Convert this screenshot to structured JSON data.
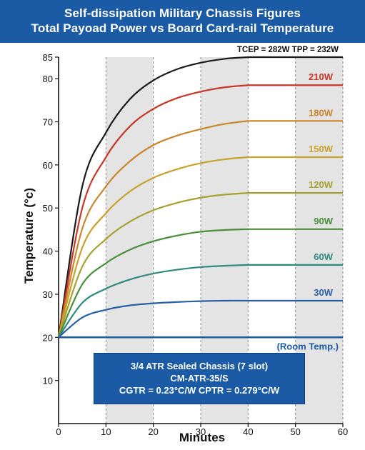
{
  "title_lines": [
    "Self-dissipation Military Chassis Figures",
    "Total Payoad Power vs Board Card-rail Temperature"
  ],
  "info_box": [
    "3/4 ATR Sealed Chassis (7 slot)",
    "CM-ATR-35/S",
    "CGTR = 0.23°C/W   CPTR = 0.279°C/W"
  ],
  "colors": {
    "title_band": "#1b5aa5",
    "room_line": "#1b5aa5",
    "shade": "#e4e4e4"
  },
  "chart_data": {
    "type": "line",
    "xlabel": "Minutes",
    "ylabel": "Temperature (°c)",
    "xlim": [
      0,
      60
    ],
    "ylim": [
      0,
      85
    ],
    "xticks": [
      0,
      10,
      20,
      30,
      40,
      50,
      60
    ],
    "yticks": [
      10,
      20,
      30,
      40,
      50,
      60,
      70,
      80,
      85
    ],
    "shaded_bands": [
      [
        10,
        20
      ],
      [
        30,
        40
      ],
      [
        50,
        60
      ]
    ],
    "gridlines": "dashed vertical at every 10 minutes",
    "room_line": {
      "label": "(Room Temp.)",
      "value": 20
    },
    "series": [
      {
        "name": "TCEP = 282W  TPP = 232W",
        "final": 85,
        "color": "#1a1a1a",
        "x": [
          0,
          5,
          10,
          15,
          20,
          25,
          30,
          35,
          40,
          50,
          60
        ],
        "y": [
          20,
          55.0,
          67.5,
          75.2,
          79.6,
          82.2,
          83.7,
          84.6,
          85,
          85,
          85
        ]
      },
      {
        "name": "210W",
        "final": 78.5,
        "color": "#c8362a",
        "x": [
          0,
          5,
          10,
          15,
          20,
          25,
          30,
          35,
          40,
          50,
          60
        ],
        "y": [
          20,
          50.0,
          61.8,
          68.9,
          73.0,
          75.5,
          77.0,
          78.0,
          78.5,
          78.5,
          78.5
        ]
      },
      {
        "name": "180W",
        "final": 70.2,
        "color": "#c9862d",
        "x": [
          0,
          5,
          10,
          15,
          20,
          25,
          30,
          35,
          40,
          50,
          60
        ],
        "y": [
          20,
          45.2,
          55.0,
          60.8,
          64.6,
          66.8,
          68.3,
          69.5,
          70.2,
          70.2,
          70.2
        ]
      },
      {
        "name": "150W",
        "final": 61.8,
        "color": "#c9a12d",
        "x": [
          0,
          5,
          10,
          15,
          20,
          25,
          30,
          35,
          40,
          50,
          60
        ],
        "y": [
          20,
          40.8,
          48.8,
          53.8,
          57.0,
          59.0,
          60.4,
          61.3,
          61.8,
          61.8,
          61.8
        ]
      },
      {
        "name": "120W",
        "final": 53.5,
        "color": "#a5a230",
        "x": [
          0,
          5,
          10,
          15,
          20,
          25,
          30,
          35,
          40,
          50,
          60
        ],
        "y": [
          20,
          36.4,
          42.8,
          46.8,
          49.5,
          51.2,
          52.4,
          53.1,
          53.5,
          53.5,
          53.5
        ]
      },
      {
        "name": "90W",
        "final": 45.1,
        "color": "#4a8f3b",
        "x": [
          0,
          5,
          10,
          15,
          20,
          25,
          30,
          35,
          40,
          50,
          60
        ],
        "y": [
          20,
          32.3,
          37.2,
          40.3,
          42.3,
          43.6,
          44.5,
          44.9,
          45.1,
          45.1,
          45.1
        ]
      },
      {
        "name": "60W",
        "final": 36.8,
        "color": "#2e8a7d",
        "x": [
          0,
          5,
          10,
          15,
          20,
          25,
          30,
          35,
          40,
          50,
          60
        ],
        "y": [
          20,
          28.0,
          31.3,
          33.4,
          34.8,
          35.7,
          36.3,
          36.6,
          36.8,
          36.8,
          36.8
        ]
      },
      {
        "name": "30W",
        "final": 28.5,
        "color": "#2b5fa5",
        "x": [
          0,
          5,
          10,
          15,
          20,
          25,
          30,
          35,
          40,
          50,
          60
        ],
        "y": [
          20,
          24.6,
          26.4,
          27.4,
          27.9,
          28.2,
          28.4,
          28.5,
          28.5,
          28.5,
          28.5
        ]
      }
    ]
  }
}
